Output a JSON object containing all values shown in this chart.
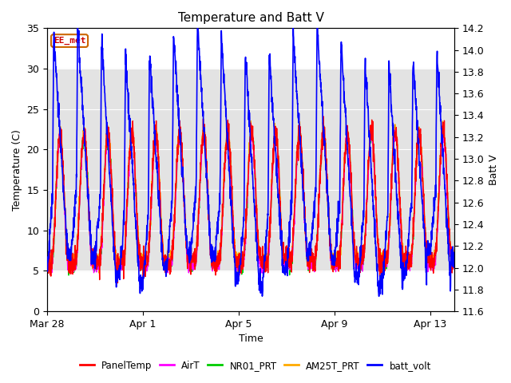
{
  "title": "Temperature and Batt V",
  "xlabel": "Time",
  "ylabel_left": "Temperature (C)",
  "ylabel_right": "Batt V",
  "ylim_left": [
    0,
    35
  ],
  "ylim_right": [
    11.6,
    14.2
  ],
  "yticks_left": [
    0,
    5,
    10,
    15,
    20,
    25,
    30,
    35
  ],
  "yticks_right": [
    11.6,
    11.8,
    12.0,
    12.2,
    12.4,
    12.6,
    12.8,
    13.0,
    13.2,
    13.4,
    13.6,
    13.8,
    14.0,
    14.2
  ],
  "xtick_labels": [
    "Mar 28",
    "Apr 1",
    "Apr 5",
    "Apr 9",
    "Apr 13"
  ],
  "xtick_positions": [
    0,
    4,
    8,
    12,
    16
  ],
  "xlim": [
    0,
    17
  ],
  "legend_entries": [
    "PanelTemp",
    "AirT",
    "NR01_PRT",
    "AM25T_PRT",
    "batt_volt"
  ],
  "legend_colors": [
    "#ff0000",
    "#ff00ff",
    "#00cc00",
    "#ffaa00",
    "#0000ff"
  ],
  "line_widths": [
    1.0,
    1.0,
    1.0,
    1.0,
    1.2
  ],
  "watermark_text": "EE_met",
  "background_color": "#ffffff",
  "plot_bg_color": "#ffffff",
  "grid_color": "#d0d0d0",
  "shaded_band_lo": 5,
  "shaded_band_hi": 30,
  "n_points": 2000,
  "num_days": 17
}
